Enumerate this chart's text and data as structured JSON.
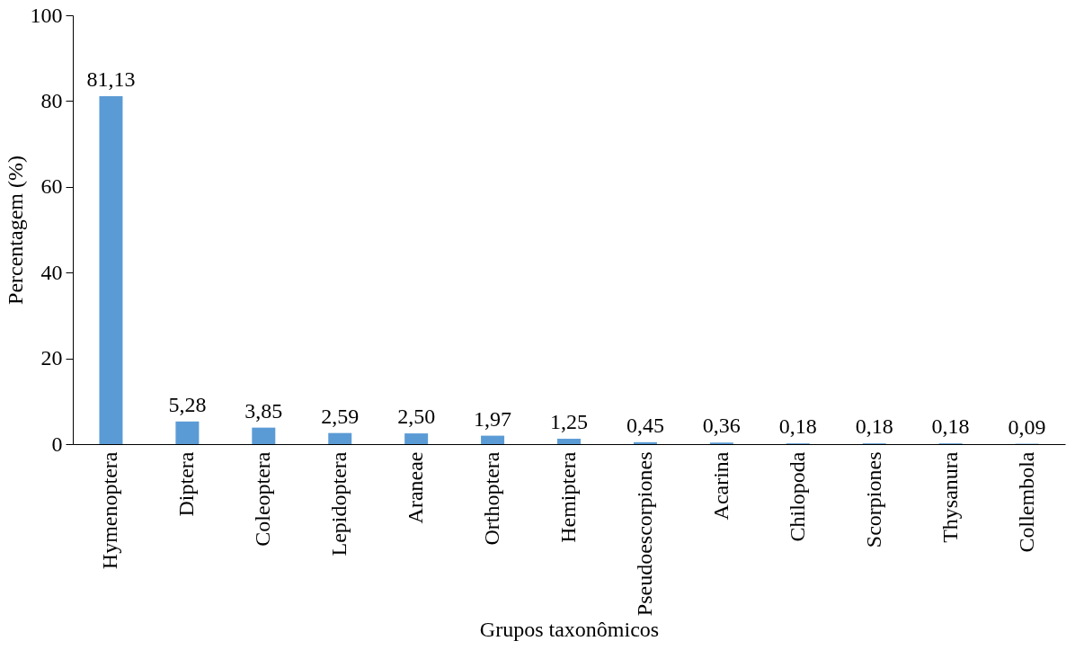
{
  "chart_data": {
    "type": "bar",
    "xlabel": "Grupos taxonômicos",
    "ylabel": "Percentagem (%)",
    "categories": [
      "Hymenoptera",
      "Diptera",
      "Coleoptera",
      "Lepidoptera",
      "Araneae",
      "Orthoptera",
      "Hemiptera",
      "Pseudoescorpiones",
      "Acarina",
      "Chilopoda",
      "Scorpiones",
      "Thysanura",
      "Collembola"
    ],
    "values": [
      81.13,
      5.28,
      3.85,
      2.59,
      2.5,
      1.97,
      1.25,
      0.45,
      0.36,
      0.18,
      0.18,
      0.18,
      0.09
    ],
    "value_labels": [
      "81,13",
      "5,28",
      "3,85",
      "2,59",
      "2,50",
      "1,97",
      "1,25",
      "0,45",
      "0,36",
      "0,18",
      "0,18",
      "0,18",
      "0,09"
    ],
    "color": "#5b9bd5",
    "ylim": [
      0,
      100
    ],
    "yticks": [
      0,
      20,
      40,
      60,
      80,
      100
    ],
    "grid": false
  }
}
